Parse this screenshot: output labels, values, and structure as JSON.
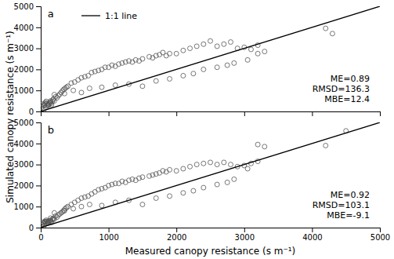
{
  "chart_data": [
    {
      "type": "scatter",
      "ylabel": "Simulated canopy resistance (s m⁻¹)",
      "annotations": [
        "a",
        "ME=0.89\nRMSD=136.3\nMBE=12.4"
      ],
      "xlim": [
        0,
        5000
      ],
      "ylim": [
        0,
        5000
      ],
      "xticks": [
        0,
        1000,
        2000,
        3000,
        4000,
        5000
      ],
      "yticks": [
        0,
        1000,
        2000,
        3000,
        4000,
        5000
      ],
      "tick_labels": "y",
      "legend": "upper left",
      "series": [
        {
          "type": "scatter",
          "marker": "open-circle",
          "color": "#555555",
          "x": [
            18,
            30,
            45,
            55,
            60,
            70,
            80,
            90,
            100,
            110,
            120,
            130,
            140,
            150,
            160,
            170,
            180,
            190,
            200,
            220,
            240,
            260,
            280,
            300,
            320,
            340,
            360,
            380,
            400,
            450,
            500,
            550,
            600,
            650,
            700,
            750,
            800,
            850,
            900,
            950,
            1000,
            1050,
            1100,
            1150,
            1200,
            1250,
            1300,
            1350,
            1400,
            1450,
            1500,
            1600,
            1650,
            1700,
            1750,
            1800,
            1850,
            1900,
            2000,
            2100,
            2200,
            2300,
            2400,
            2500,
            2600,
            2700,
            2800,
            2900,
            3000,
            3100,
            3200,
            3300,
            4200,
            50,
            75,
            110,
            145,
            200,
            350,
            480,
            600,
            720,
            900,
            1100,
            1300,
            1500,
            1700,
            1900,
            2100,
            2250,
            2400,
            2600,
            2750,
            2850,
            3050,
            3200,
            4300
          ],
          "values": [
            200,
            350,
            280,
            320,
            380,
            420,
            480,
            380,
            320,
            280,
            350,
            400,
            450,
            380,
            320,
            480,
            550,
            600,
            500,
            700,
            650,
            750,
            820,
            900,
            980,
            1050,
            1100,
            1150,
            1200,
            1350,
            1400,
            1500,
            1600,
            1650,
            1700,
            1850,
            1900,
            1950,
            2000,
            2100,
            2100,
            2200,
            2150,
            2250,
            2300,
            2350,
            2400,
            2350,
            2450,
            2400,
            2500,
            2600,
            2550,
            2650,
            2700,
            2800,
            2650,
            2750,
            2750,
            2900,
            3000,
            3100,
            3200,
            3350,
            3100,
            3200,
            3300,
            3000,
            3050,
            2950,
            3150,
            2850,
            3950,
            100,
            200,
            300,
            500,
            800,
            850,
            1000,
            900,
            1100,
            1150,
            1250,
            1300,
            1200,
            1450,
            1550,
            1700,
            1800,
            2000,
            2100,
            2200,
            2300,
            2450,
            2750,
            3700
          ]
        },
        {
          "name": "1:1 line",
          "type": "line",
          "color": "#000000",
          "x": [
            0,
            5000
          ],
          "values": [
            0,
            5000
          ]
        }
      ]
    },
    {
      "type": "scatter",
      "xlabel": "Measured canopy resistance (s m⁻¹)",
      "annotations": [
        "b",
        "ME=0.92\nRMSD=103.1\nMBE=-9.1"
      ],
      "xlim": [
        0,
        5000
      ],
      "ylim": [
        0,
        5000
      ],
      "xticks": [
        0,
        1000,
        2000,
        3000,
        4000,
        5000
      ],
      "yticks": [
        0,
        1000,
        2000,
        3000,
        4000,
        5000
      ],
      "series": [
        {
          "type": "scatter",
          "marker": "open-circle",
          "color": "#555555",
          "x": [
            18,
            30,
            45,
            55,
            60,
            70,
            80,
            90,
            100,
            110,
            120,
            130,
            140,
            150,
            160,
            170,
            180,
            190,
            200,
            220,
            240,
            260,
            280,
            300,
            320,
            340,
            360,
            380,
            400,
            450,
            500,
            550,
            600,
            650,
            700,
            750,
            800,
            850,
            900,
            950,
            1000,
            1050,
            1100,
            1150,
            1200,
            1250,
            1300,
            1350,
            1400,
            1450,
            1500,
            1600,
            1650,
            1700,
            1750,
            1800,
            1850,
            1900,
            2000,
            2100,
            2200,
            2300,
            2400,
            2500,
            2600,
            2700,
            2800,
            2900,
            3000,
            3100,
            3200,
            3300,
            4200,
            4500,
            50,
            75,
            110,
            145,
            200,
            350,
            480,
            600,
            720,
            900,
            1100,
            1300,
            1500,
            1700,
            1900,
            2100,
            2250,
            2400,
            2600,
            2750,
            2850,
            3050,
            3200
          ],
          "values": [
            150,
            250,
            200,
            250,
            300,
            280,
            350,
            300,
            250,
            220,
            280,
            320,
            350,
            300,
            250,
            380,
            420,
            450,
            400,
            550,
            500,
            600,
            650,
            700,
            750,
            820,
            900,
            950,
            1000,
            1100,
            1200,
            1300,
            1400,
            1450,
            1500,
            1600,
            1700,
            1800,
            1850,
            1900,
            2000,
            2050,
            2100,
            2100,
            2200,
            2150,
            2250,
            2300,
            2250,
            2350,
            2400,
            2450,
            2500,
            2550,
            2600,
            2700,
            2650,
            2750,
            2700,
            2800,
            2900,
            3000,
            3050,
            3100,
            3000,
            3100,
            3000,
            2900,
            2950,
            3050,
            3150,
            3850,
            3900,
            4600,
            100,
            200,
            300,
            450,
            700,
            800,
            900,
            1000,
            1100,
            1050,
            1200,
            1300,
            1100,
            1400,
            1500,
            1650,
            1750,
            1900,
            2050,
            2150,
            2300,
            2800,
            3950
          ]
        },
        {
          "type": "line",
          "color": "#000000",
          "x": [
            0,
            5000
          ],
          "values": [
            0,
            5000
          ]
        }
      ]
    }
  ]
}
